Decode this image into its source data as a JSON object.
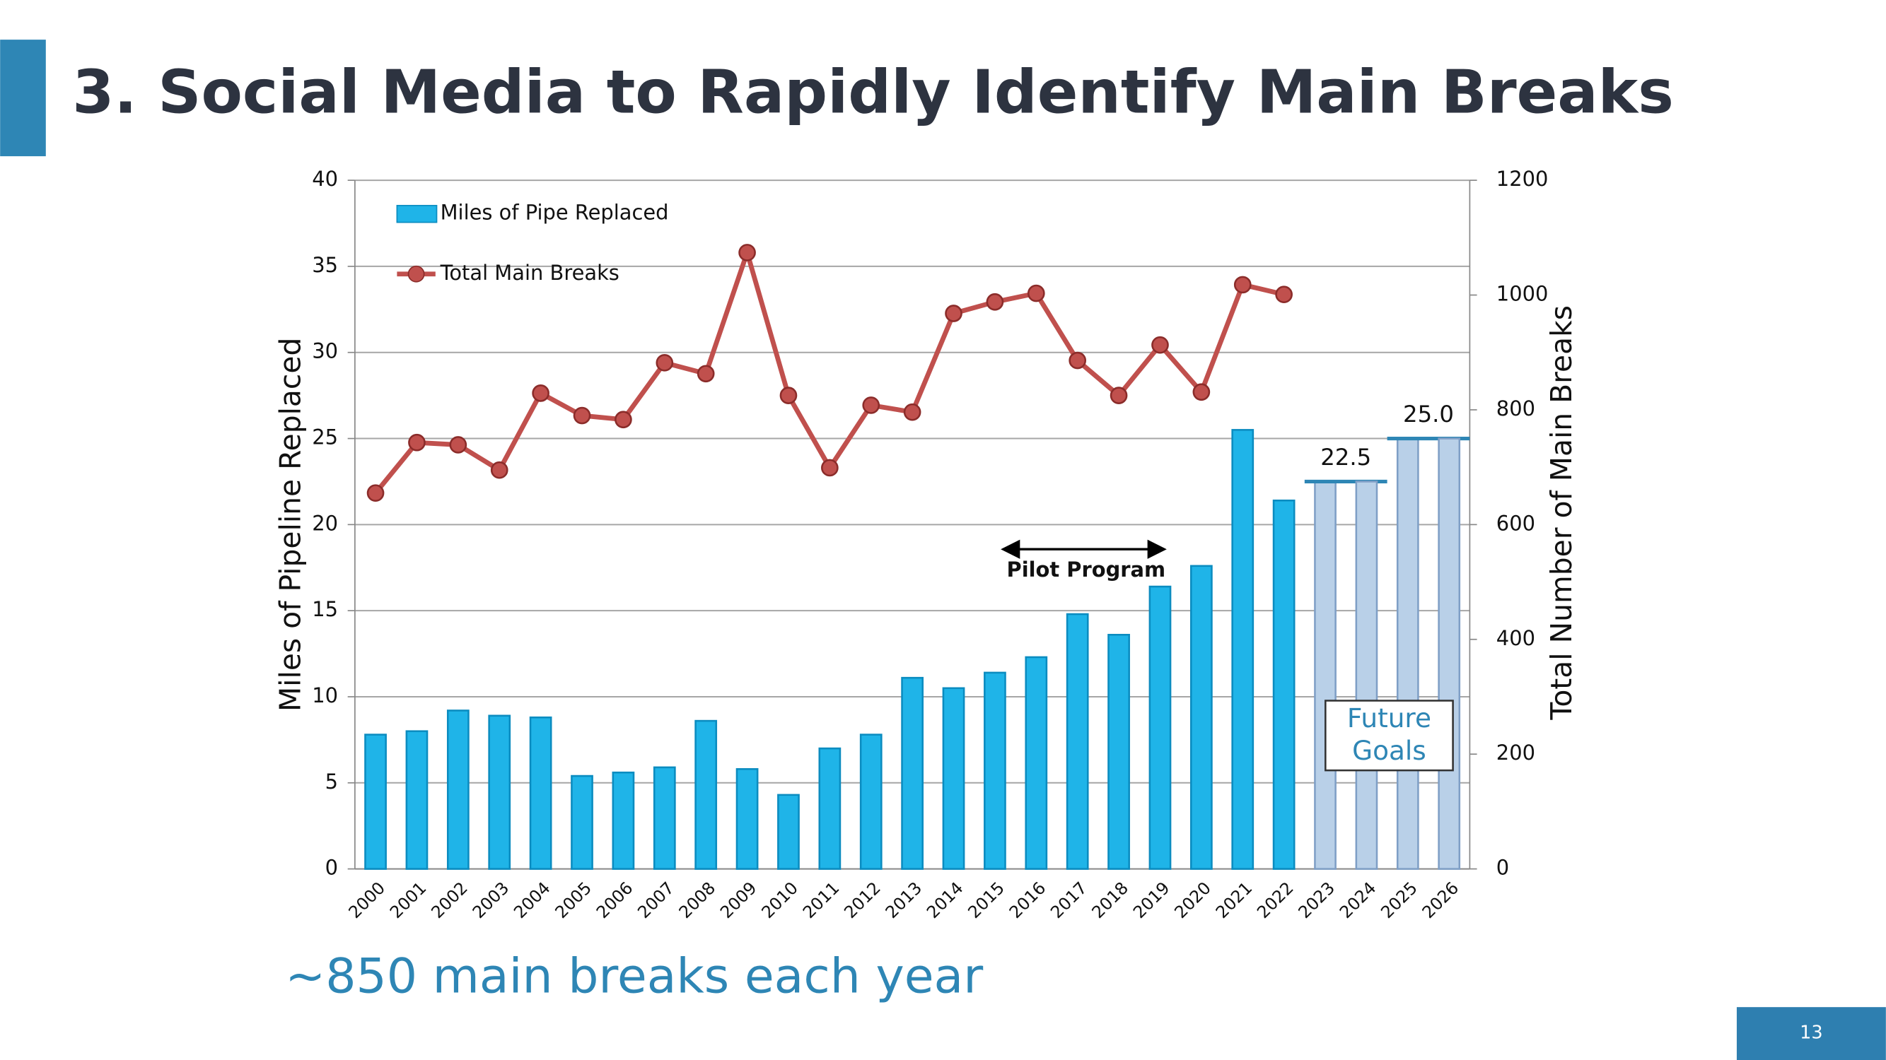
{
  "slide": {
    "title": "3. Social Media to Rapidly Identify Main Breaks",
    "subtitle": "~850 main breaks each year",
    "page_number": "13"
  },
  "chart_data": {
    "type": "bar_line",
    "categories": [
      "2000",
      "2001",
      "2002",
      "2003",
      "2004",
      "2005",
      "2006",
      "2007",
      "2008",
      "2009",
      "2010",
      "2011",
      "2012",
      "2013",
      "2014",
      "2015",
      "2016",
      "2017",
      "2018",
      "2019",
      "2020",
      "2021",
      "2022",
      "2023",
      "2024",
      "2025",
      "2026"
    ],
    "y_label": "Miles of Pipeline Replaced",
    "y2_label": "Total Number of Main Breaks",
    "ylim": [
      0,
      40
    ],
    "yticks": [
      0,
      5,
      10,
      15,
      20,
      25,
      30,
      35,
      40
    ],
    "y2lim": [
      0,
      1200
    ],
    "y2ticks": [
      0,
      200,
      400,
      600,
      800,
      1000,
      1200
    ],
    "grid": true,
    "legend": "top-left",
    "series": [
      {
        "name": "Miles of Pipe Replaced",
        "kind": "bar",
        "color": "#1fb4e8",
        "colors": [
          "#1fb4e8",
          "#1fb4e8",
          "#1fb4e8",
          "#1fb4e8",
          "#1fb4e8",
          "#1fb4e8",
          "#1fb4e8",
          "#1fb4e8",
          "#1fb4e8",
          "#1fb4e8",
          "#1fb4e8",
          "#1fb4e8",
          "#1fb4e8",
          "#1fb4e8",
          "#1fb4e8",
          "#1fb4e8",
          "#1fb4e8",
          "#1fb4e8",
          "#1fb4e8",
          "#1fb4e8",
          "#1fb4e8",
          "#1fb4e8",
          "#1fb4e8",
          "#b9d0e8",
          "#b9d0e8",
          "#b9d0e8",
          "#b9d0e8"
        ],
        "values": [
          7.8,
          8.0,
          9.2,
          8.9,
          8.8,
          5.4,
          5.6,
          5.9,
          8.6,
          5.8,
          4.3,
          7.0,
          7.8,
          11.1,
          10.5,
          11.4,
          12.3,
          14.8,
          13.6,
          16.4,
          17.6,
          25.5,
          21.4,
          22.5,
          22.5,
          25.0,
          25.0
        ],
        "value_labels": [
          null,
          null,
          null,
          null,
          null,
          null,
          null,
          null,
          null,
          null,
          null,
          null,
          null,
          null,
          null,
          null,
          null,
          null,
          null,
          null,
          null,
          null,
          null,
          "22.5",
          null,
          "25.0",
          null
        ]
      },
      {
        "name": "Total Main Breaks",
        "kind": "line",
        "axis": "y2",
        "color": "#c0504d",
        "values": [
          655,
          743,
          739,
          695,
          829,
          790,
          783,
          882,
          863,
          1074,
          825,
          699,
          808,
          796,
          968,
          988,
          1003,
          886,
          825,
          913,
          831,
          1018,
          1001,
          null,
          null,
          null,
          null
        ]
      }
    ],
    "annotations": {
      "pilot": "Pilot Program",
      "future": [
        "Future",
        "Goals"
      ]
    }
  }
}
